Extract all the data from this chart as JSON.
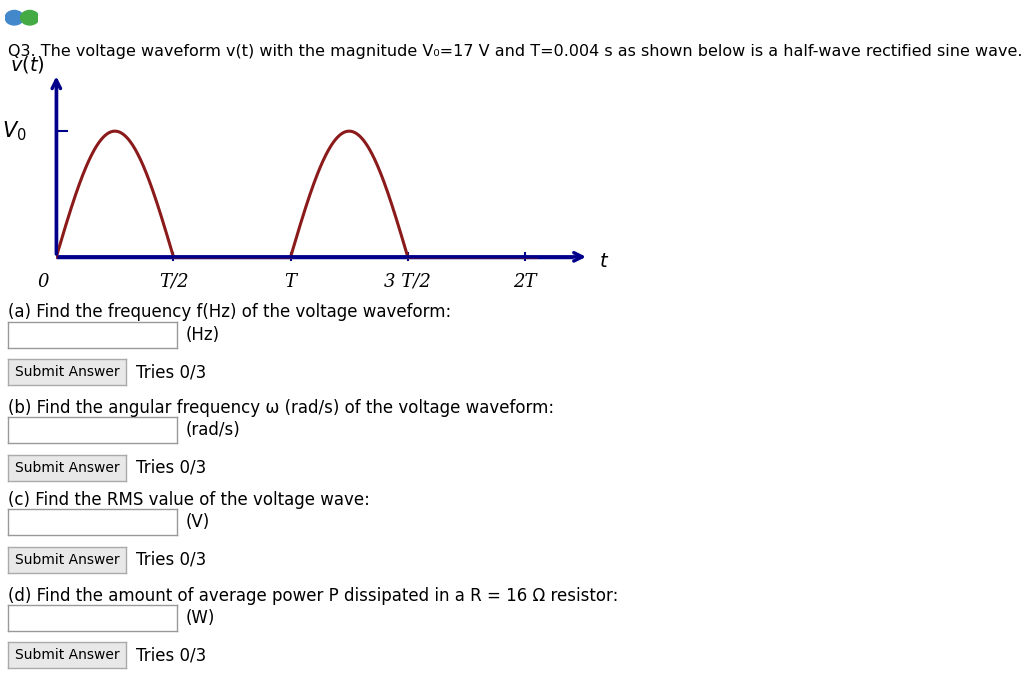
{
  "background_color": "#ffffff",
  "wave_color": "#8B1A1A",
  "axis_color": "#00008B",
  "title_line1": "Q3. The voltage waveform v(t) with the magnitude V₀=17 V and T=0.004 s as shown below is a half-wave rectified sine wave.",
  "x_tick_labels": [
    "0",
    "T/2",
    "T",
    "3 T/2",
    "2T"
  ],
  "questions": [
    "(a) Find the frequency f(Hz) of the voltage waveform:",
    "(b) Find the angular frequency ω (rad/s) of the voltage waveform:",
    "(c) Find the RMS value of the voltage wave:",
    "(d) Find the amount of average power P dissipated in a R = 16 Ω resistor:"
  ],
  "units": [
    "(Hz)",
    "(rad/s)",
    "(V)",
    "(W)"
  ],
  "button_label": "Submit Answer",
  "tries_label": "Tries 0/3",
  "icon_colors": [
    "#4488cc",
    "#44aa44"
  ],
  "title_fontsize": 11.5,
  "question_fontsize": 12,
  "tick_fontsize": 13,
  "wave_lw": 2.2,
  "axis_lw": 2.5
}
